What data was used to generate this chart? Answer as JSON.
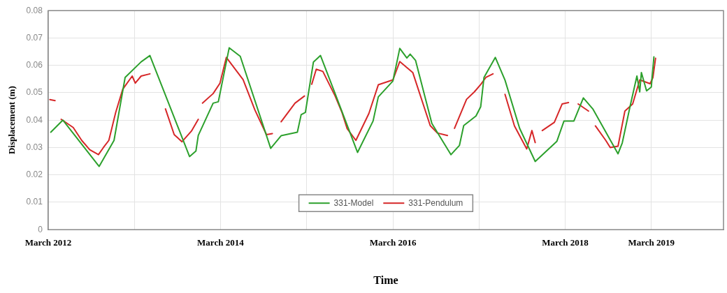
{
  "chart_data": {
    "type": "line",
    "xlabel": "Time",
    "ylabel": "Displacement (m)",
    "xlim": [
      "2012-03",
      "2020-01"
    ],
    "xticks": [
      {
        "value": "2012-03",
        "label": "March 2012"
      },
      {
        "value": "2013-03",
        "label": null
      },
      {
        "value": "2014-03",
        "label": "March 2014"
      },
      {
        "value": "2015-03",
        "label": null
      },
      {
        "value": "2016-03",
        "label": "March 2016"
      },
      {
        "value": "2017-03",
        "label": null
      },
      {
        "value": "2018-03",
        "label": "March 2018"
      },
      {
        "value": "2019-03",
        "label": "March 2019"
      }
    ],
    "ylim": [
      0,
      0.08
    ],
    "yticks": [
      0,
      0.01,
      0.02,
      0.03,
      0.04,
      0.05,
      0.06,
      0.07,
      0.08
    ],
    "grid": true,
    "legend": "bottom",
    "marker": "none",
    "line_style": "solid",
    "series": [
      {
        "name": "331-Model",
        "color": "#2ca02c",
        "x": [
          "2012-03-12",
          "2012-05-02",
          "2012-10-03",
          "2012-12-05",
          "2013-01-21",
          "2013-03-30",
          "2013-05-06",
          "2013-08-17",
          "2013-10-21",
          "2013-11-17",
          "2013-11-27",
          "2014-01-29",
          "2014-02-20",
          "2014-04-07",
          "2014-05-24",
          "2014-09-30",
          "2014-11-13",
          "2015-01-21",
          "2015-02-06",
          "2015-02-24",
          "2015-03-30",
          "2015-04-29",
          "2015-06-30",
          "2015-10-03",
          "2015-12-08",
          "2015-12-30",
          "2016-03-01",
          "2016-03-30",
          "2016-04-29",
          "2016-05-13",
          "2016-06-05",
          "2016-08-13",
          "2016-11-02",
          "2016-12-08",
          "2016-12-26",
          "2017-02-16",
          "2017-03-08",
          "2017-03-22",
          "2017-05-09",
          "2017-06-19",
          "2017-08-20",
          "2017-10-25",
          "2018-01-25",
          "2018-02-24",
          "2018-04-07",
          "2018-05-17",
          "2018-06-26",
          "2018-10-11",
          "2018-10-29",
          "2018-12-01",
          "2018-12-30",
          "2019-01-11",
          "2019-01-18",
          "2019-02-09",
          "2019-03-01",
          "2019-03-12"
        ],
        "values": [
          0.0356,
          0.04,
          0.0231,
          0.0326,
          0.0556,
          0.0613,
          0.0636,
          0.041,
          0.0267,
          0.0287,
          0.0344,
          0.0462,
          0.0467,
          0.0664,
          0.0633,
          0.0297,
          0.0343,
          0.0356,
          0.042,
          0.0428,
          0.0612,
          0.0636,
          0.0497,
          0.0282,
          0.0397,
          0.0485,
          0.0543,
          0.0662,
          0.0627,
          0.0641,
          0.0618,
          0.0388,
          0.0274,
          0.0308,
          0.038,
          0.0415,
          0.0449,
          0.0556,
          0.0629,
          0.0546,
          0.037,
          0.0249,
          0.0323,
          0.0397,
          0.0397,
          0.0481,
          0.0441,
          0.0277,
          0.0317,
          0.045,
          0.0561,
          0.0503,
          0.0574,
          0.0507,
          0.0521,
          0.0631
        ]
      },
      {
        "name": "331-Pendulum",
        "color": "#d62728",
        "x": [
          "2012-03-08",
          "2012-03-30",
          "2012-04-14",
          "2012-04-25",
          "2012-06-15",
          "2012-07-21",
          "2012-08-24",
          "2012-09-30",
          "2012-10-21",
          "2012-11-13",
          "2012-12-12",
          "2013-01-11",
          "2013-02-20",
          "2013-03-05",
          "2013-03-30",
          "2013-05-06",
          "2013-06-08",
          "2013-07-11",
          "2013-08-17",
          "2013-09-19",
          "2013-10-29",
          "2013-11-27",
          "2013-12-08",
          "2013-12-15",
          "2014-01-29",
          "2014-02-27",
          "2014-03-26",
          "2014-06-05",
          "2014-07-25",
          "2014-09-12",
          "2014-10-07",
          "2014-10-25",
          "2014-11-13",
          "2015-01-11",
          "2015-02-20",
          "2015-03-05",
          "2015-03-23",
          "2015-04-11",
          "2015-05-09",
          "2015-06-30",
          "2015-07-29",
          "2015-08-20",
          "2015-09-26",
          "2015-11-20",
          "2015-12-30",
          "2016-03-01",
          "2016-03-30",
          "2016-05-24",
          "2016-08-06",
          "2016-09-05",
          "2016-10-18",
          "2016-11-02",
          "2016-11-17",
          "2017-01-07",
          "2017-02-09",
          "2017-03-08",
          "2017-03-30",
          "2017-04-29",
          "2017-05-24",
          "2017-06-19",
          "2017-07-29",
          "2017-09-19",
          "2017-10-11",
          "2017-10-25",
          "2017-11-09",
          "2017-11-24",
          "2018-01-14",
          "2018-02-16",
          "2018-03-15",
          "2018-04-07",
          "2018-04-25",
          "2018-06-08",
          "2018-06-23",
          "2018-07-07",
          "2018-08-20",
          "2018-09-08",
          "2018-10-11",
          "2018-11-09",
          "2018-12-12",
          "2019-01-11",
          "2019-02-24",
          "2019-03-08",
          "2019-03-19"
        ],
        "values": [
          0.0475,
          0.0471,
          null,
          0.0403,
          0.0373,
          0.0326,
          0.0292,
          0.0274,
          0.03,
          0.0326,
          0.0428,
          0.0513,
          0.0561,
          0.0535,
          0.0561,
          0.0569,
          null,
          0.0441,
          0.0347,
          0.0321,
          0.036,
          0.0403,
          null,
          0.0462,
          0.0497,
          0.0535,
          0.0629,
          0.0548,
          0.0437,
          0.0347,
          0.0351,
          null,
          0.0394,
          0.0462,
          0.0488,
          null,
          0.0531,
          0.0586,
          0.0578,
          0.0488,
          0.0428,
          0.0369,
          0.0326,
          0.0424,
          0.0529,
          0.0547,
          0.0614,
          0.0574,
          0.038,
          0.0353,
          0.0344,
          null,
          0.037,
          0.0476,
          0.0503,
          0.053,
          0.0556,
          0.0569,
          null,
          0.0494,
          0.0379,
          0.0295,
          0.0362,
          0.0318,
          null,
          0.0362,
          0.0392,
          0.0459,
          0.0464,
          null,
          0.0459,
          0.0433,
          null,
          0.0379,
          0.0326,
          0.03,
          0.0305,
          0.0433,
          0.0459,
          0.0547,
          0.0533,
          0.0556,
          0.0626
        ]
      }
    ]
  }
}
